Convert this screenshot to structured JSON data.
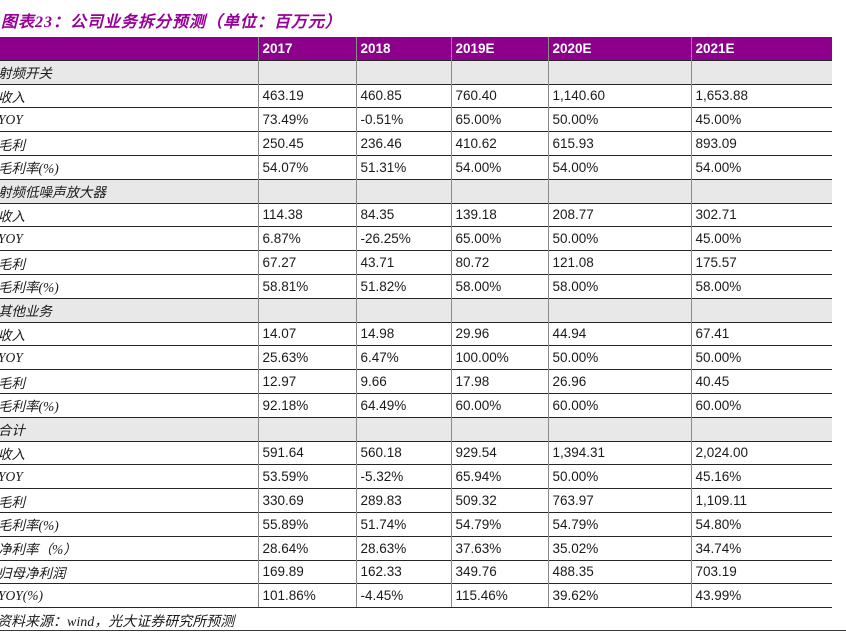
{
  "page": {
    "title": "图表23：公司业务拆分预测（单位：百万元）",
    "source": "资料来源：wind，光大证券研究所预测"
  },
  "colors": {
    "title_purple": "#990099",
    "header_bg": "#8C008C",
    "header_text": "#FFFFFF",
    "section_row_bg": "#E8E8E8",
    "horizontal_gridline": "#262626",
    "vertical_gridline": "#8A8A8A"
  },
  "table": {
    "corner_label": "",
    "columns": [
      "2017",
      "2018",
      "2019E",
      "2020E",
      "2021E"
    ],
    "rows": [
      {
        "type": "section",
        "label": "射频开关",
        "values": [
          "",
          "",
          "",
          "",
          ""
        ]
      },
      {
        "type": "data",
        "label": "收入",
        "values": [
          "463.19",
          "460.85",
          "760.40",
          "1,140.60",
          "1,653.88"
        ]
      },
      {
        "type": "data",
        "label": "YOY",
        "values": [
          "73.49%",
          "-0.51%",
          "65.00%",
          "50.00%",
          "45.00%"
        ]
      },
      {
        "type": "data",
        "label": "毛利",
        "values": [
          "250.45",
          "236.46",
          "410.62",
          "615.93",
          "893.09"
        ]
      },
      {
        "type": "data",
        "label": "毛利率(%)",
        "values": [
          "54.07%",
          "51.31%",
          "54.00%",
          "54.00%",
          "54.00%"
        ]
      },
      {
        "type": "section",
        "label": "射频低噪声放大器",
        "values": [
          "",
          "",
          "",
          "",
          ""
        ]
      },
      {
        "type": "data",
        "label": "收入",
        "values": [
          "114.38",
          "84.35",
          "139.18",
          "208.77",
          "302.71"
        ]
      },
      {
        "type": "data",
        "label": "YOY",
        "values": [
          "6.87%",
          "-26.25%",
          "65.00%",
          "50.00%",
          "45.00%"
        ]
      },
      {
        "type": "data",
        "label": "毛利",
        "values": [
          "67.27",
          "43.71",
          "80.72",
          "121.08",
          "175.57"
        ]
      },
      {
        "type": "data",
        "label": "毛利率(%)",
        "values": [
          "58.81%",
          "51.82%",
          "58.00%",
          "58.00%",
          "58.00%"
        ]
      },
      {
        "type": "section",
        "label": "其他业务",
        "values": [
          "",
          "",
          "",
          "",
          ""
        ]
      },
      {
        "type": "data",
        "label": "收入",
        "values": [
          "14.07",
          "14.98",
          "29.96",
          "44.94",
          "67.41"
        ]
      },
      {
        "type": "data",
        "label": "YOY",
        "values": [
          "25.63%",
          "6.47%",
          "100.00%",
          "50.00%",
          "50.00%"
        ]
      },
      {
        "type": "data",
        "label": "毛利",
        "values": [
          "12.97",
          "9.66",
          "17.98",
          "26.96",
          "40.45"
        ]
      },
      {
        "type": "data",
        "label": "毛利率(%)",
        "values": [
          "92.18%",
          "64.49%",
          "60.00%",
          "60.00%",
          "60.00%"
        ]
      },
      {
        "type": "section",
        "label": "合计",
        "values": [
          "",
          "",
          "",
          "",
          ""
        ]
      },
      {
        "type": "data",
        "label": "收入",
        "values": [
          "591.64",
          "560.18",
          "929.54",
          "1,394.31",
          "2,024.00"
        ]
      },
      {
        "type": "data",
        "label": "YOY",
        "values": [
          "53.59%",
          "-5.32%",
          "65.94%",
          "50.00%",
          "45.16%"
        ]
      },
      {
        "type": "data",
        "label": "毛利",
        "values": [
          "330.69",
          "289.83",
          "509.32",
          "763.97",
          "1,109.11"
        ]
      },
      {
        "type": "data",
        "label": "毛利率(%)",
        "values": [
          "55.89%",
          "51.74%",
          "54.79%",
          "54.79%",
          "54.80%"
        ]
      },
      {
        "type": "data",
        "label": "净利率（%）",
        "values": [
          "28.64%",
          "28.63%",
          "37.63%",
          "35.02%",
          "34.74%"
        ]
      },
      {
        "type": "data",
        "label": "归母净利润",
        "values": [
          "169.89",
          "162.33",
          "349.76",
          "488.35",
          "703.19"
        ]
      },
      {
        "type": "data",
        "label": "YOY(%)",
        "values": [
          "101.86%",
          "-4.45%",
          "115.46%",
          "39.62%",
          "43.99%"
        ]
      }
    ]
  }
}
